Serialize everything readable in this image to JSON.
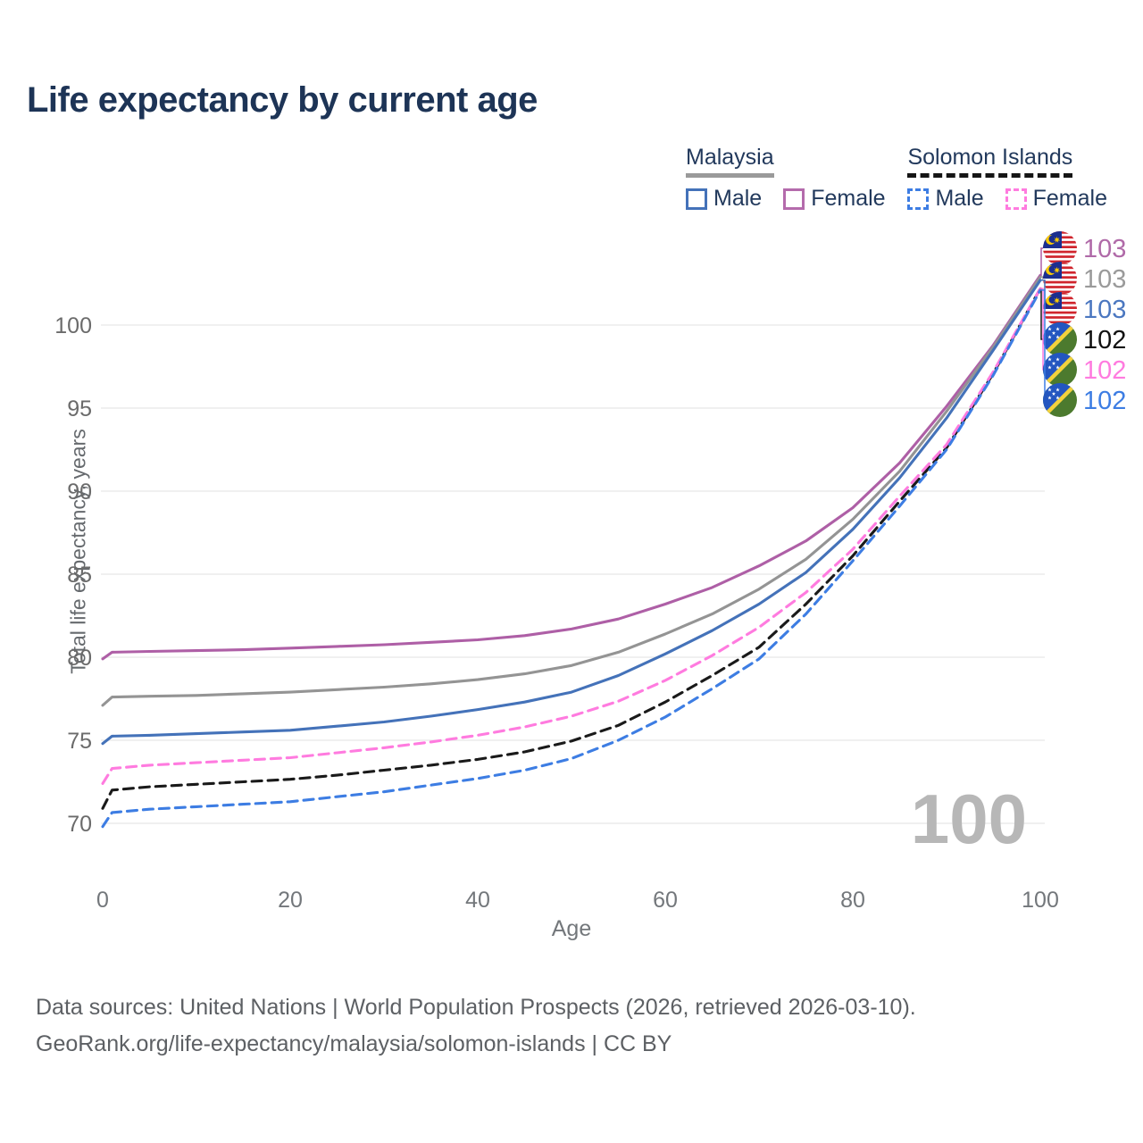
{
  "header": {
    "title": "Life expectancy by current age"
  },
  "legend": {
    "groups": [
      {
        "country": "Malaysia",
        "line_style": "solid",
        "underline_color": "#9a9a9a",
        "items": [
          {
            "label": "Male",
            "color": "#4472b9",
            "dashed": false
          },
          {
            "label": "Female",
            "color": "#b46bac",
            "dashed": false
          }
        ]
      },
      {
        "country": "Solomon Islands",
        "line_style": "dashed",
        "underline_color": "#151515",
        "items": [
          {
            "label": "Male",
            "color": "#3d7de3",
            "dashed": true
          },
          {
            "label": "Female",
            "color": "#ff7bdf",
            "dashed": true
          }
        ]
      }
    ]
  },
  "chart_data": {
    "type": "line",
    "title": "Life expectancy by current age",
    "xlabel": "Age",
    "ylabel": "Total life expectancy, years",
    "watermark": "100",
    "x_ticks": [
      0,
      20,
      40,
      60,
      80,
      100
    ],
    "y_ticks": [
      70,
      75,
      80,
      85,
      90,
      95,
      100
    ],
    "xlim": [
      0,
      100
    ],
    "ylim": [
      69,
      104
    ],
    "grid": true,
    "legend_position": "top-right",
    "x": [
      0,
      1,
      5,
      10,
      15,
      20,
      25,
      30,
      35,
      40,
      45,
      50,
      55,
      60,
      65,
      70,
      75,
      80,
      85,
      90,
      95,
      100
    ],
    "series": [
      {
        "name": "Malaysia — Female",
        "country": "Malaysia",
        "sex": "Female",
        "color": "#ae5fa6",
        "dashed": false,
        "flag": "MY",
        "end_label": "103",
        "end_label_color": "#b06aa8",
        "end_row": 0,
        "values": [
          79.9,
          80.3,
          80.35,
          80.4,
          80.45,
          80.55,
          80.65,
          80.75,
          80.9,
          81.05,
          81.3,
          81.7,
          82.3,
          83.2,
          84.2,
          85.5,
          87.0,
          89.0,
          91.7,
          95.1,
          98.8,
          103.0
        ]
      },
      {
        "name": "Malaysia — Both sexes",
        "country": "Malaysia",
        "sex": "Both sexes",
        "color": "#949494",
        "dashed": false,
        "flag": "MY",
        "end_label": "103",
        "end_label_color": "#9a9a9a",
        "end_row": 1,
        "values": [
          77.1,
          77.6,
          77.65,
          77.7,
          77.8,
          77.9,
          78.05,
          78.2,
          78.4,
          78.65,
          79.0,
          79.5,
          80.3,
          81.4,
          82.6,
          84.1,
          85.9,
          88.3,
          91.2,
          94.8,
          98.7,
          102.9
        ]
      },
      {
        "name": "Malaysia — Male",
        "country": "Malaysia",
        "sex": "Male",
        "color": "#4472b9",
        "dashed": false,
        "flag": "MY",
        "end_label": "103",
        "end_label_color": "#4b77c0",
        "end_row": 2,
        "values": [
          74.8,
          75.25,
          75.3,
          75.4,
          75.5,
          75.6,
          75.85,
          76.1,
          76.45,
          76.85,
          77.3,
          77.9,
          78.9,
          80.2,
          81.6,
          83.2,
          85.1,
          87.7,
          90.8,
          94.4,
          98.5,
          102.7
        ]
      },
      {
        "name": "Solomon Islands — Both sexes",
        "country": "Solomon Islands",
        "sex": "Both sexes",
        "color": "#1a1a1a",
        "dashed": true,
        "flag": "SB",
        "end_label": "102",
        "end_label_color": "#111111",
        "end_row": 3,
        "values": [
          70.9,
          72.0,
          72.2,
          72.35,
          72.5,
          72.65,
          72.9,
          73.2,
          73.5,
          73.85,
          74.3,
          74.95,
          75.9,
          77.3,
          78.9,
          80.6,
          83.2,
          86.1,
          89.4,
          92.6,
          97.1,
          102.2
        ]
      },
      {
        "name": "Solomon Islands — Female",
        "country": "Solomon Islands",
        "sex": "Female",
        "color": "#ff7bdf",
        "dashed": true,
        "flag": "SB",
        "end_label": "102",
        "end_label_color": "#ff7bdf",
        "end_row": 4,
        "values": [
          72.4,
          73.3,
          73.5,
          73.65,
          73.8,
          73.95,
          74.25,
          74.55,
          74.9,
          75.3,
          75.8,
          76.45,
          77.35,
          78.6,
          80.1,
          81.8,
          83.9,
          86.5,
          89.7,
          92.8,
          97.2,
          102.2
        ]
      },
      {
        "name": "Solomon Islands — Male",
        "country": "Solomon Islands",
        "sex": "Male",
        "color": "#3d7de3",
        "dashed": true,
        "flag": "SB",
        "end_label": "102",
        "end_label_color": "#3d7de3",
        "end_row": 5,
        "values": [
          69.8,
          70.65,
          70.85,
          71.0,
          71.15,
          71.3,
          71.6,
          71.9,
          72.3,
          72.7,
          73.2,
          73.9,
          75.0,
          76.4,
          78.1,
          79.9,
          82.6,
          85.8,
          89.1,
          92.5,
          97.0,
          102.1
        ]
      }
    ]
  },
  "footer": {
    "line1": "Data sources: United Nations | World Population Prospects (2026, retrieved 2026-03-10).",
    "line2": "GeoRank.org/life-expectancy/malaysia/solomon-islands | CC BY"
  }
}
